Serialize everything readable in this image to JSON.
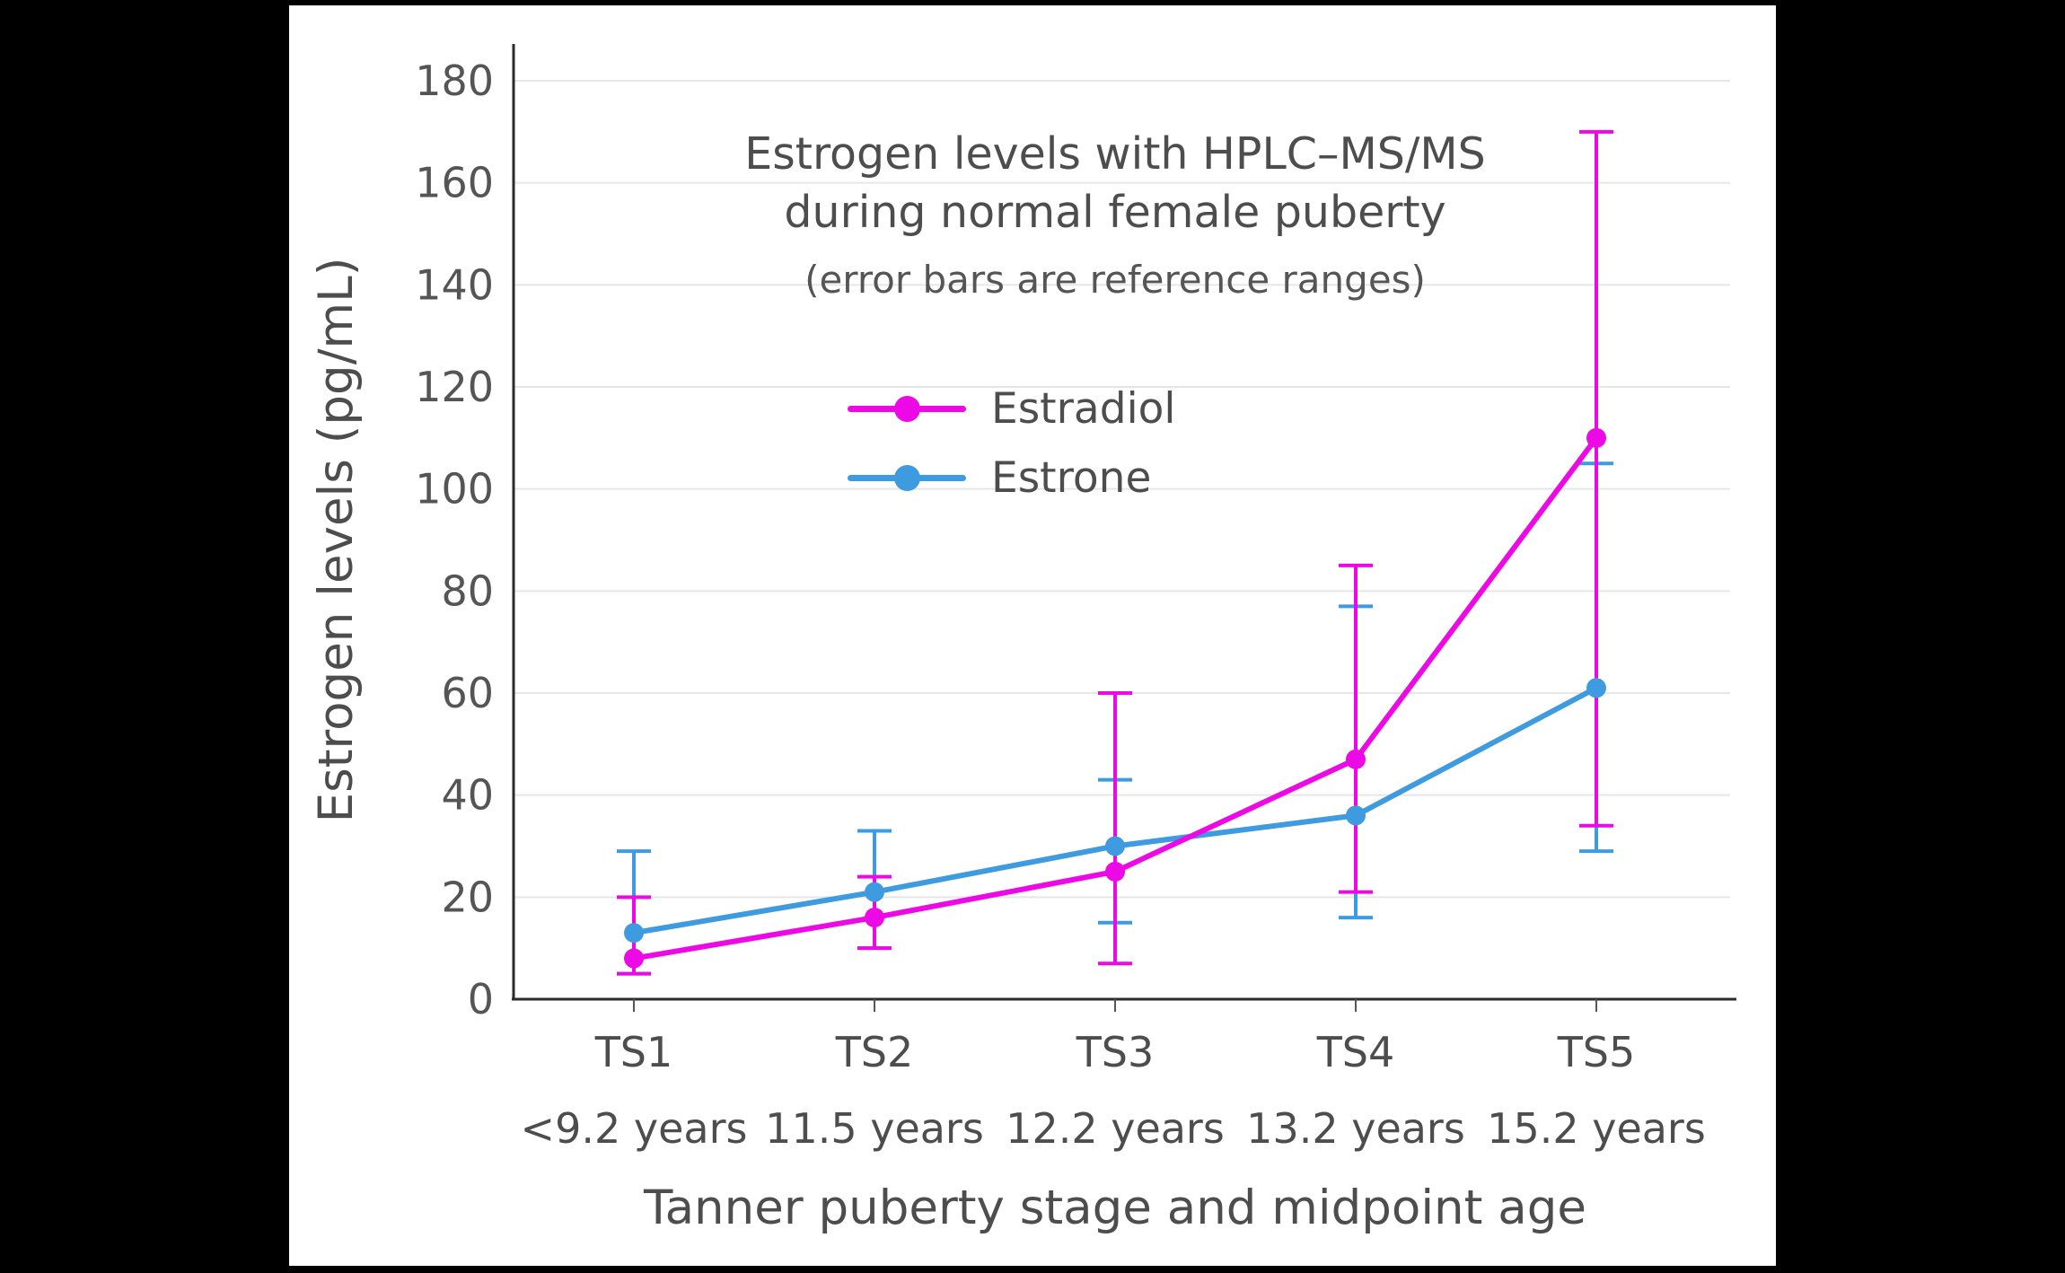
{
  "chart_data": {
    "type": "line",
    "title_line1": "Estrogen levels with HPLC–MS/MS",
    "title_line2": "during normal female puberty",
    "subtitle": "(error bars are reference ranges)",
    "xlabel": "Tanner puberty stage and midpoint age",
    "ylabel": "Estrogen levels (pg/mL)",
    "categories": [
      "TS1",
      "TS2",
      "TS3",
      "TS4",
      "TS5"
    ],
    "category_ages": [
      "<9.2 years",
      "11.5 years",
      "12.2 years",
      "13.2 years",
      "15.2 years"
    ],
    "ylim": [
      0,
      180
    ],
    "ytick_step": 20,
    "grid": true,
    "legend_position": "upper-center",
    "error_bars": "reference ranges",
    "series": [
      {
        "name": "Estradiol",
        "color": "#ED09E6",
        "values": [
          8,
          16,
          25,
          47,
          110
        ],
        "error_low": [
          5,
          10,
          7,
          21,
          34
        ],
        "error_high": [
          20,
          24,
          60,
          85,
          170
        ]
      },
      {
        "name": "Estrone",
        "color": "#3E9BE0",
        "values": [
          13,
          21,
          30,
          36,
          61
        ],
        "error_low": [
          5,
          10,
          15,
          16,
          29
        ],
        "error_high": [
          29,
          33,
          43,
          77,
          105
        ]
      }
    ]
  },
  "colors": {
    "background": "#000000",
    "panel": "#ffffff",
    "grid": "#e6e6e6",
    "axis": "#2b2b2b",
    "text": "#555555",
    "label": "#4d4d4d"
  }
}
